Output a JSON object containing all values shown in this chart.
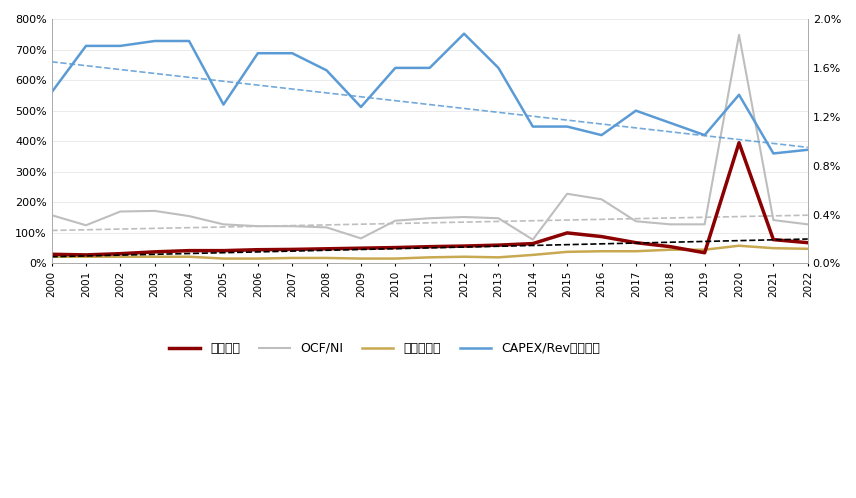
{
  "years": [
    2000,
    2001,
    2002,
    2003,
    2004,
    2005,
    2006,
    2007,
    2008,
    2009,
    2010,
    2011,
    2012,
    2013,
    2014,
    2015,
    2016,
    2017,
    2018,
    2019,
    2020,
    2021,
    2022
  ],
  "fenhong_bili": [
    30,
    28,
    32,
    38,
    42,
    42,
    45,
    46,
    48,
    50,
    52,
    55,
    57,
    60,
    65,
    100,
    88,
    68,
    55,
    35,
    395,
    78,
    68
  ],
  "ocf_ni": [
    158,
    125,
    170,
    172,
    155,
    128,
    122,
    122,
    118,
    82,
    140,
    148,
    152,
    148,
    78,
    228,
    210,
    138,
    128,
    128,
    748,
    142,
    128
  ],
  "asset_debt": [
    22,
    22,
    22,
    22,
    22,
    16,
    16,
    18,
    18,
    16,
    16,
    20,
    22,
    20,
    28,
    38,
    40,
    40,
    45,
    45,
    58,
    50,
    48
  ],
  "capex_rev": [
    0.014,
    0.0178,
    0.0178,
    0.0182,
    0.0182,
    0.013,
    0.0172,
    0.0172,
    0.0158,
    0.0128,
    0.016,
    0.016,
    0.0188,
    0.016,
    0.0112,
    0.0112,
    0.0105,
    0.0125,
    0.0115,
    0.0105,
    0.0138,
    0.009,
    0.0093
  ],
  "fenhong_trend": [
    22,
    80
  ],
  "ocf_trend": [
    108,
    158
  ],
  "capex_trend": [
    0.0165,
    0.0095
  ],
  "color_fenhong": "#8B0000",
  "color_ocf": "#BEBEBE",
  "color_asset": "#C8A850",
  "color_capex": "#5B9BD5",
  "ylim_left": [
    0,
    800
  ],
  "ylim_right": [
    0.0,
    0.02
  ],
  "yticks_left": [
    0,
    100,
    200,
    300,
    400,
    500,
    600,
    700,
    800
  ],
  "yticks_right": [
    0.0,
    0.004,
    0.008,
    0.012,
    0.016,
    0.02
  ],
  "ytick_labels_left": [
    "0%",
    "100%",
    "200%",
    "300%",
    "400%",
    "500%",
    "600%",
    "700%",
    "800%"
  ],
  "ytick_labels_right": [
    "0.0%",
    "0.4%",
    "0.8%",
    "1.2%",
    "1.6%",
    "2.0%"
  ],
  "legend_labels": [
    "分红比例",
    "OCF/NI",
    "资产负债率",
    "CAPEX/Rev（右轴）"
  ],
  "background_color": "#ffffff"
}
